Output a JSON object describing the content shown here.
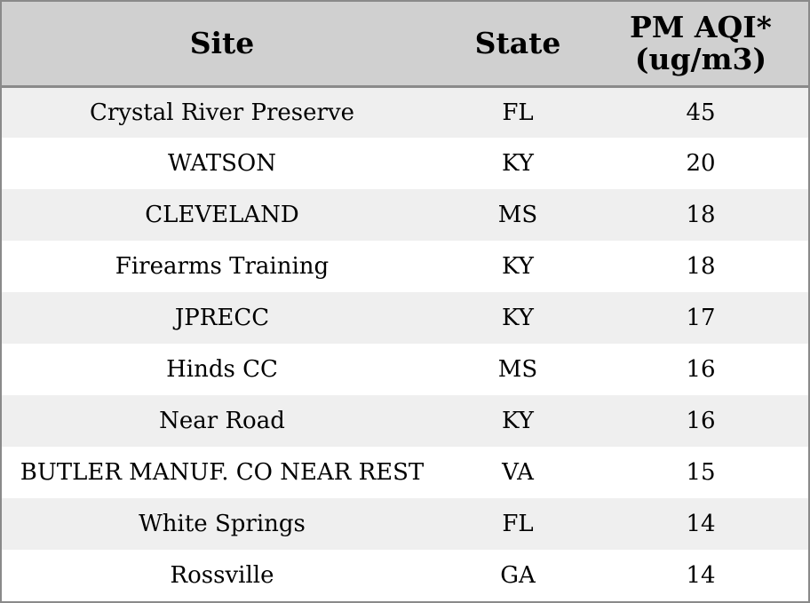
{
  "table": {
    "headers": {
      "site": "Site",
      "state": "State",
      "aqi_line1": "PM AQI*",
      "aqi_line2": "(ug/m3)"
    },
    "rows": [
      {
        "site": "Crystal River Preserve",
        "state": "FL",
        "aqi": "45"
      },
      {
        "site": "WATSON",
        "state": "KY",
        "aqi": "20"
      },
      {
        "site": "CLEVELAND",
        "state": "MS",
        "aqi": "18"
      },
      {
        "site": "Firearms Training",
        "state": "KY",
        "aqi": "18"
      },
      {
        "site": "JPRECC",
        "state": "KY",
        "aqi": "17"
      },
      {
        "site": "Hinds CC",
        "state": "MS",
        "aqi": "16"
      },
      {
        "site": "Near Road",
        "state": "KY",
        "aqi": "16"
      },
      {
        "site": "BUTLER MANUF. CO NEAR REST",
        "state": "VA",
        "aqi": "15"
      },
      {
        "site": "White Springs",
        "state": "FL",
        "aqi": "14"
      },
      {
        "site": "Rossville",
        "state": "GA",
        "aqi": "14"
      }
    ]
  },
  "colors": {
    "header_bg": "#d0d0d0",
    "row_alt_bg": "#efefef",
    "row_bg": "#ffffff",
    "border": "#8a8a8a"
  }
}
